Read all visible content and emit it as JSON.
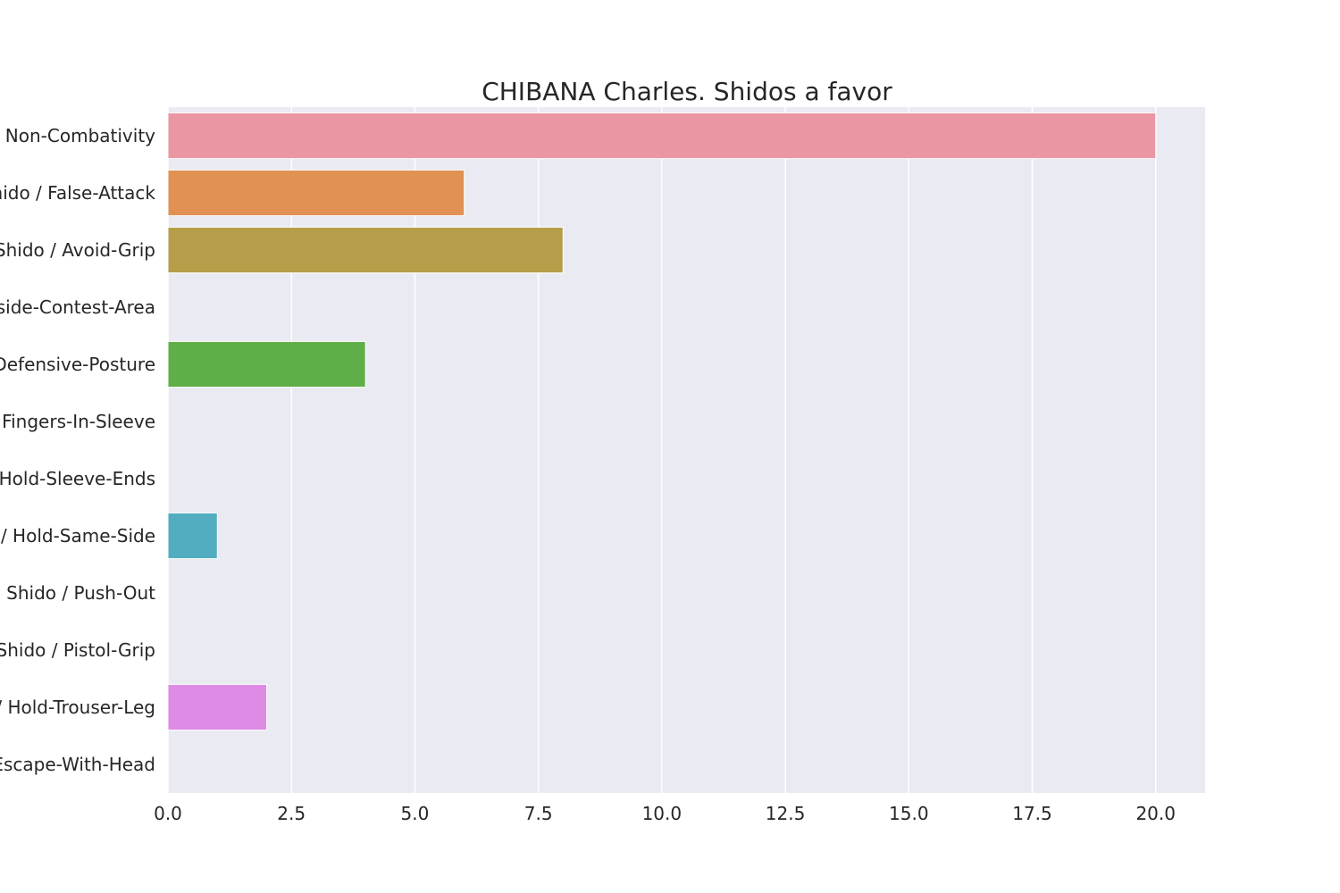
{
  "chart_data": {
    "type": "bar",
    "orientation": "horizontal",
    "title": "CHIBANA Charles. Shidos a favor",
    "xlabel": "",
    "ylabel": "",
    "categories": [
      "Shido / Non-Combativity",
      "Shido / False-Attack",
      "Shido / Avoid-Grip",
      "Shido / Outside-Contest-Area",
      "Shido / Defensive-Posture",
      "Shido / Fingers-In-Sleeve",
      "Shido / Hold-Sleeve-Ends",
      "Shido / Hold-Same-Side",
      "Shido / Push-Out",
      "Shido / Pistol-Grip",
      "Shido / Hold-Trouser-Leg",
      "Shido / Escape-With-Head"
    ],
    "values": [
      20,
      6,
      8,
      0,
      4,
      0,
      0,
      1,
      0,
      0,
      2,
      0
    ],
    "colors": [
      "#ea96a3",
      "#e19153",
      "#b69d4a",
      "#8fa84a",
      "#60ae47",
      "#4caf7f",
      "#4fb0a3",
      "#51adbf",
      "#5ea1e0",
      "#a98ae6",
      "#de8be6",
      "#e794c5"
    ],
    "xlim": [
      0,
      21
    ],
    "x_ticks": [
      0,
      2.5,
      5,
      7.5,
      10,
      12.5,
      15,
      17.5,
      20
    ],
    "x_tick_labels": [
      "0.0",
      "2.5",
      "5.0",
      "7.5",
      "10.0",
      "12.5",
      "15.0",
      "17.5",
      "20.0"
    ],
    "grid": true,
    "background_color": "#eaeaf2",
    "grid_color": "#ffffff"
  }
}
